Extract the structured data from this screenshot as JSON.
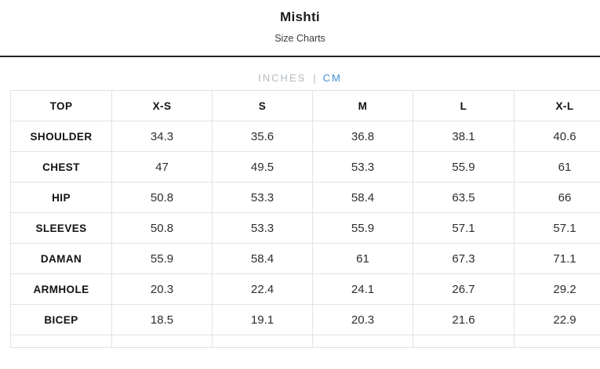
{
  "header": {
    "title": "Mishti",
    "subtitle": "Size Charts"
  },
  "unit_toggle": {
    "separator": "|",
    "options": [
      {
        "label": "INCHES",
        "active": false
      },
      {
        "label": "CM",
        "active": true
      }
    ],
    "active_color": "#3f8fd9",
    "inactive_color": "#b4bbc1"
  },
  "size_chart": {
    "columns": [
      "TOP",
      "X-S",
      "S",
      "M",
      "L",
      "X-L"
    ],
    "rows": [
      {
        "label": "SHOULDER",
        "values": [
          "34.3",
          "35.6",
          "36.8",
          "38.1",
          "40.6"
        ]
      },
      {
        "label": "CHEST",
        "values": [
          "47",
          "49.5",
          "53.3",
          "55.9",
          "61"
        ]
      },
      {
        "label": "HIP",
        "values": [
          "50.8",
          "53.3",
          "58.4",
          "63.5",
          "66"
        ]
      },
      {
        "label": "SLEEVES",
        "values": [
          "50.8",
          "53.3",
          "55.9",
          "57.1",
          "57.1"
        ]
      },
      {
        "label": "DAMAN",
        "values": [
          "55.9",
          "58.4",
          "61",
          "67.3",
          "71.1"
        ]
      },
      {
        "label": "ARMHOLE",
        "values": [
          "20.3",
          "22.4",
          "24.1",
          "26.7",
          "29.2"
        ]
      },
      {
        "label": "BICEP",
        "values": [
          "18.5",
          "19.1",
          "20.3",
          "21.6",
          "22.9"
        ]
      }
    ]
  }
}
